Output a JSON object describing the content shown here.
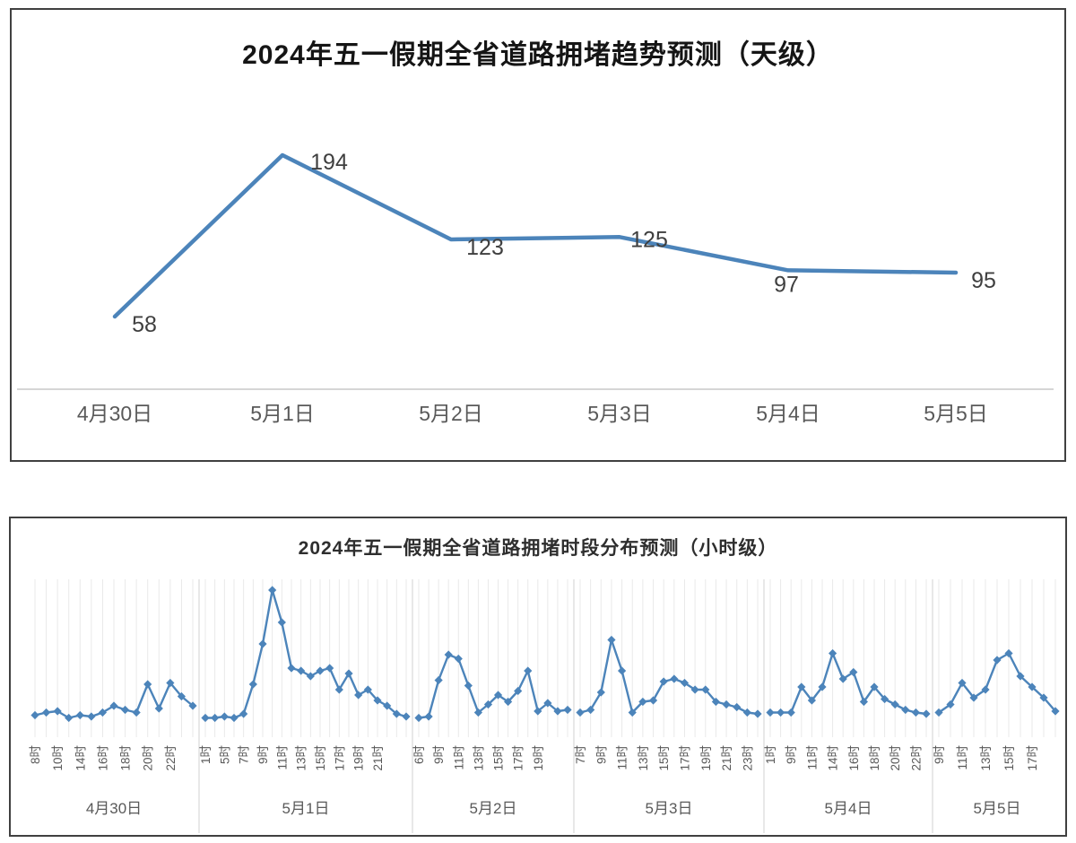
{
  "colors": {
    "line": "#4c84ba",
    "data_label": "#3f3f3f",
    "axis_label": "#595959",
    "axis_line": "#d6d6d6",
    "gridline": "#e9e9e9",
    "day_separator": "#d9d9d9",
    "panel_border": "#404040"
  },
  "chart_data": [
    {
      "type": "line",
      "title": "2024年五一假期全省道路拥堵趋势预测（天级）",
      "categories": [
        "4月30日",
        "5月1日",
        "5月2日",
        "5月3日",
        "5月4日",
        "5月5日"
      ],
      "values": [
        58,
        194,
        123,
        125,
        97,
        95
      ],
      "data_labels": [
        "58",
        "194",
        "123",
        "125",
        "97",
        "95"
      ],
      "xlabel": "",
      "ylabel": "",
      "ylim": [
        0,
        220
      ],
      "grid": false,
      "legend": "none",
      "marker": "none"
    },
    {
      "type": "line",
      "title": "2024年五一假期全省道路拥堵时段分布预测（小时级）",
      "marker": "diamond",
      "grid": "vertical-per-hour",
      "legend": "none",
      "y_axis": "none (values are relative congestion height, 1.0 = tallest peak at 5月1日 9时)",
      "sections": [
        {
          "day": "4月30日",
          "hour_labels": [
            "8时",
            "10时",
            "14时",
            "16时",
            "18时",
            "20时",
            "22时"
          ],
          "values": [
            0.07,
            0.09,
            0.1,
            0.05,
            0.07,
            0.06,
            0.09,
            0.14,
            0.11,
            0.09,
            0.3,
            0.12,
            0.31,
            0.21,
            0.14
          ]
        },
        {
          "day": "5月1日",
          "hour_labels": [
            "1时",
            "5时",
            "7时",
            "9时",
            "11时",
            "13时",
            "15时",
            "17时",
            "19时",
            "21时"
          ],
          "values": [
            0.05,
            0.05,
            0.06,
            0.05,
            0.08,
            0.3,
            0.6,
            1.0,
            0.76,
            0.42,
            0.4,
            0.36,
            0.4,
            0.42,
            0.26,
            0.38,
            0.22,
            0.26,
            0.18,
            0.14,
            0.08,
            0.06
          ]
        },
        {
          "day": "5月2日",
          "hour_labels": [
            "6时",
            "9时",
            "11时",
            "13时",
            "15时",
            "17时",
            "19时"
          ],
          "values": [
            0.05,
            0.06,
            0.33,
            0.52,
            0.49,
            0.29,
            0.09,
            0.15,
            0.22,
            0.17,
            0.25,
            0.4,
            0.1,
            0.16,
            0.1,
            0.11
          ]
        },
        {
          "day": "5月3日",
          "hour_labels": [
            "7时",
            "9时",
            "11时",
            "13时",
            "15时",
            "17时",
            "19时",
            "21时",
            "23时"
          ],
          "values": [
            0.09,
            0.11,
            0.24,
            0.63,
            0.4,
            0.09,
            0.17,
            0.18,
            0.32,
            0.34,
            0.31,
            0.26,
            0.26,
            0.17,
            0.15,
            0.13,
            0.09,
            0.08
          ]
        },
        {
          "day": "5月4日",
          "hour_labels": [
            "1时",
            "9时",
            "11时",
            "14时",
            "16时",
            "18时",
            "20时",
            "22时"
          ],
          "values": [
            0.09,
            0.09,
            0.09,
            0.28,
            0.18,
            0.28,
            0.53,
            0.34,
            0.39,
            0.17,
            0.28,
            0.19,
            0.15,
            0.11,
            0.09,
            0.08
          ]
        },
        {
          "day": "5月5日",
          "hour_labels": [
            "9时",
            "11时",
            "13时",
            "15时",
            "17时"
          ],
          "values": [
            0.09,
            0.15,
            0.31,
            0.2,
            0.26,
            0.48,
            0.53,
            0.36,
            0.28,
            0.2,
            0.1
          ]
        }
      ]
    }
  ]
}
